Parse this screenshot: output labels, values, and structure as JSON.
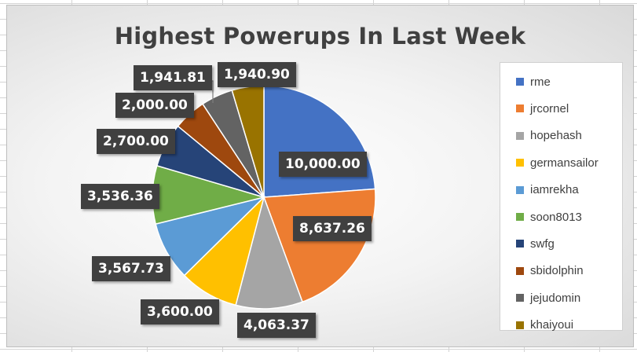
{
  "chart_data": {
    "type": "pie",
    "title": "Highest Powerups In Last Week",
    "categories": [
      "rme",
      "jrcornel",
      "hopehash",
      "germansailor",
      "iamrekha",
      "soon8013",
      "swfg",
      "sbidolphin",
      "jejudomin",
      "khaiyoui"
    ],
    "values": [
      10000.0,
      8637.26,
      4063.37,
      3600.0,
      3567.73,
      3536.36,
      2700.0,
      2000.0,
      1941.81,
      1940.9
    ],
    "data_labels": [
      "10,000.00",
      "8,637.26",
      "4,063.37",
      "3,600.00",
      "3,567.73",
      "3,536.36",
      "2,700.00",
      "2,000.00",
      "1,941.81",
      "1,940.90"
    ],
    "colors": [
      "#4472C4",
      "#ED7D31",
      "#A5A5A5",
      "#FFC000",
      "#5B9BD5",
      "#70AD47",
      "#264478",
      "#9E480E",
      "#636363",
      "#997300"
    ],
    "legend_position": "right"
  }
}
